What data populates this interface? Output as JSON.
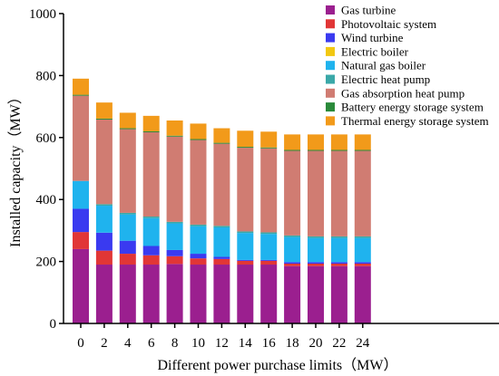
{
  "chart_data": {
    "type": "bar",
    "stacked": true,
    "title": "",
    "xlabel": "Different power purchase limits（MW）",
    "ylabel": "Installed capacity（MW）",
    "ylim": [
      0,
      1000
    ],
    "yticks": [
      "0",
      "200",
      "400",
      "600",
      "800",
      "1000"
    ],
    "categories": [
      "0",
      "2",
      "4",
      "6",
      "8",
      "10",
      "12",
      "14",
      "16",
      "18",
      "20",
      "22",
      "24"
    ],
    "legend_position": "top-right",
    "grid": false,
    "series": [
      {
        "name": "Gas turbine",
        "color": "#9b1f8f",
        "values": [
          240,
          190,
          190,
          190,
          192,
          190,
          190,
          190,
          190,
          185,
          185,
          185,
          185
        ]
      },
      {
        "name": "Photovoltaic system",
        "color": "#e13636",
        "values": [
          55,
          45,
          35,
          30,
          25,
          20,
          18,
          12,
          12,
          8,
          8,
          8,
          8
        ]
      },
      {
        "name": "Wind turbine",
        "color": "#3a3af0",
        "values": [
          75,
          58,
          42,
          30,
          20,
          15,
          7,
          3,
          3,
          5,
          5,
          5,
          5
        ]
      },
      {
        "name": "Electric boiler",
        "color": "#f2c811",
        "values": [
          0,
          0,
          0,
          0,
          0,
          0,
          0,
          0,
          0,
          0,
          0,
          0,
          0
        ]
      },
      {
        "name": "Natural gas boiler",
        "color": "#1fb3ee",
        "values": [
          90,
          87,
          85,
          90,
          86,
          89,
          95,
          87,
          84,
          81,
          78,
          78,
          78
        ]
      },
      {
        "name": "Electric heat pump",
        "color": "#3aa8a8",
        "values": [
          0,
          5,
          5,
          5,
          5,
          5,
          5,
          5,
          5,
          5,
          5,
          5,
          5
        ]
      },
      {
        "name": "Gas absorption heat pump",
        "color": "#d07c72",
        "values": [
          275,
          273,
          270,
          272,
          275,
          273,
          265,
          270,
          271,
          273,
          276,
          276,
          276
        ]
      },
      {
        "name": "Battery energy storage system",
        "color": "#2a8a3a",
        "values": [
          3,
          3,
          3,
          3,
          3,
          3,
          3,
          3,
          3,
          3,
          3,
          3,
          3
        ]
      },
      {
        "name": "Thermal energy storage system",
        "color": "#f29a1a",
        "values": [
          52,
          52,
          50,
          50,
          49,
          50,
          47,
          52,
          51,
          50,
          50,
          50,
          50
        ]
      }
    ]
  }
}
